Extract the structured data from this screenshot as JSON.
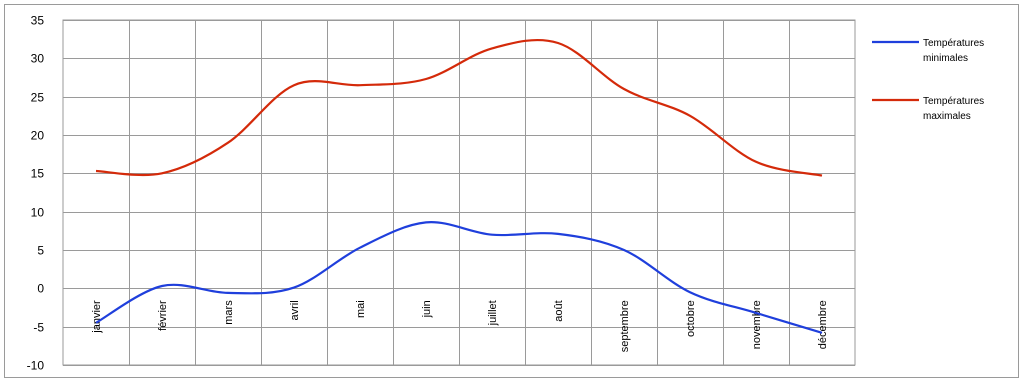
{
  "chart_data": {
    "type": "line",
    "title": "",
    "xlabel": "",
    "ylabel": "",
    "categories": [
      "janvier",
      "février",
      "mars",
      "avril",
      "mai",
      "juin",
      "juillet",
      "août",
      "septembre",
      "octobre",
      "novembre",
      "décembre"
    ],
    "ylim": [
      -10,
      35
    ],
    "yticks": [
      -10,
      -5,
      0,
      5,
      10,
      15,
      20,
      25,
      30,
      35
    ],
    "grid": true,
    "legend_position": "right",
    "series": [
      {
        "name_lines": [
          "Températures",
          "minimales"
        ],
        "color": "#1f3fdc",
        "values": [
          -4.5,
          0.3,
          -0.6,
          0.1,
          5.3,
          8.6,
          7.0,
          7.1,
          5.0,
          -0.5,
          -3.2,
          -5.8
        ]
      },
      {
        "name_lines": [
          "Températures",
          "maximales"
        ],
        "color": "#d42a0a",
        "values": [
          15.3,
          15.0,
          19.0,
          26.5,
          26.5,
          27.3,
          31.3,
          32.0,
          26.0,
          22.5,
          16.5,
          14.7
        ]
      }
    ]
  }
}
